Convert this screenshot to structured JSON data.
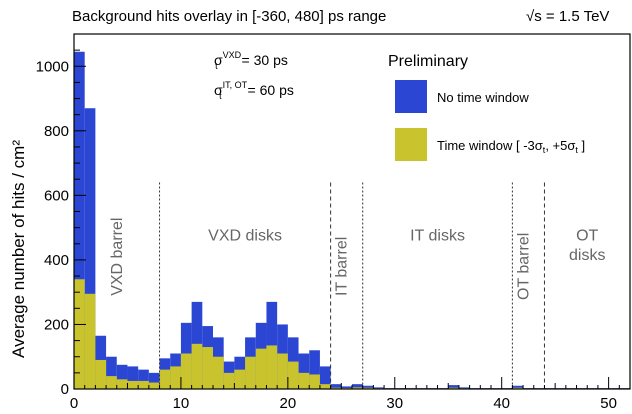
{
  "chart_data": {
    "type": "bar",
    "title": "Background hits overlay in [-360, 480] ps range",
    "energy_label": "√s = 1.5 TeV",
    "preliminary": "Preliminary",
    "sigma_vxd": "σ_t^VXD = 30 ps",
    "sigma_vxd_parts": {
      "base": "σ",
      "sub": "t",
      "sup": "VXD",
      "rest": " = 30 ps"
    },
    "sigma_it_ot": "σ_t^IT, OT = 60 ps",
    "sigma_it_ot_parts": {
      "base": "σ",
      "sub": "t",
      "sup": "IT, OT",
      "rest": " = 60 ps"
    },
    "xlabel": "",
    "ylabel": "Average number of hits / cm²",
    "xlim": [
      0,
      52
    ],
    "ylim": [
      0,
      1100
    ],
    "xticks": [
      0,
      10,
      20,
      30,
      40,
      50
    ],
    "yticks": [
      0,
      200,
      400,
      600,
      800,
      1000
    ],
    "bin_width": 1,
    "series": [
      {
        "name": "No time window",
        "color": "#2a46d2",
        "values": [
          1045,
          870,
          165,
          100,
          75,
          70,
          60,
          50,
          95,
          110,
          205,
          270,
          195,
          160,
          85,
          100,
          160,
          205,
          270,
          200,
          160,
          110,
          120,
          70,
          15,
          8,
          15,
          10,
          5,
          3,
          3,
          3,
          3,
          3,
          3,
          12,
          5,
          3,
          3,
          3,
          3,
          10,
          3,
          3,
          3,
          3,
          3,
          3,
          3,
          3,
          3,
          3
        ]
      },
      {
        "name": "Time window [ -3σt, +5σt ]",
        "color": "#c9c42d",
        "values": [
          340,
          295,
          90,
          40,
          30,
          25,
          25,
          20,
          60,
          70,
          110,
          140,
          130,
          100,
          50,
          60,
          100,
          125,
          135,
          110,
          85,
          50,
          45,
          15,
          4,
          3,
          5,
          4,
          2,
          2,
          2,
          2,
          2,
          2,
          2,
          4,
          2,
          2,
          2,
          2,
          2,
          4,
          2,
          2,
          2,
          2,
          2,
          2,
          2,
          2,
          2,
          2
        ]
      }
    ],
    "legend": {
      "placement": "top-right",
      "entries": [
        {
          "label": "No time window",
          "color": "#2a46d2"
        },
        {
          "label_parts": [
            "Time window [ -3σ",
            "t",
            ", +5σ",
            "t",
            " ]"
          ],
          "label": "Time window [ -3σt, +5σt ]",
          "color": "#c9c42d"
        }
      ]
    },
    "dividers": [
      {
        "x": 8,
        "style": "dotted"
      },
      {
        "x": 24,
        "style": "dashed"
      },
      {
        "x": 27,
        "style": "dotted"
      },
      {
        "x": 41,
        "style": "dotted"
      },
      {
        "x": 44,
        "style": "dashed"
      }
    ],
    "regions": [
      {
        "label": "VXD barrel",
        "x": 4.5,
        "y": 410,
        "rotated": true
      },
      {
        "label": "VXD disks",
        "x": 16,
        "y": 460,
        "rotated": false
      },
      {
        "label": "IT barrel",
        "x": 25.5,
        "y": 380,
        "rotated": true
      },
      {
        "label": "IT disks",
        "x": 34,
        "y": 460,
        "rotated": false
      },
      {
        "label": "OT barrel",
        "x": 42.5,
        "y": 380,
        "rotated": true
      },
      {
        "label": "OT",
        "x": 48,
        "y": 460,
        "rotated": false
      },
      {
        "label": "disks",
        "x": 48,
        "y": 400,
        "rotated": false
      }
    ],
    "grid": false
  }
}
